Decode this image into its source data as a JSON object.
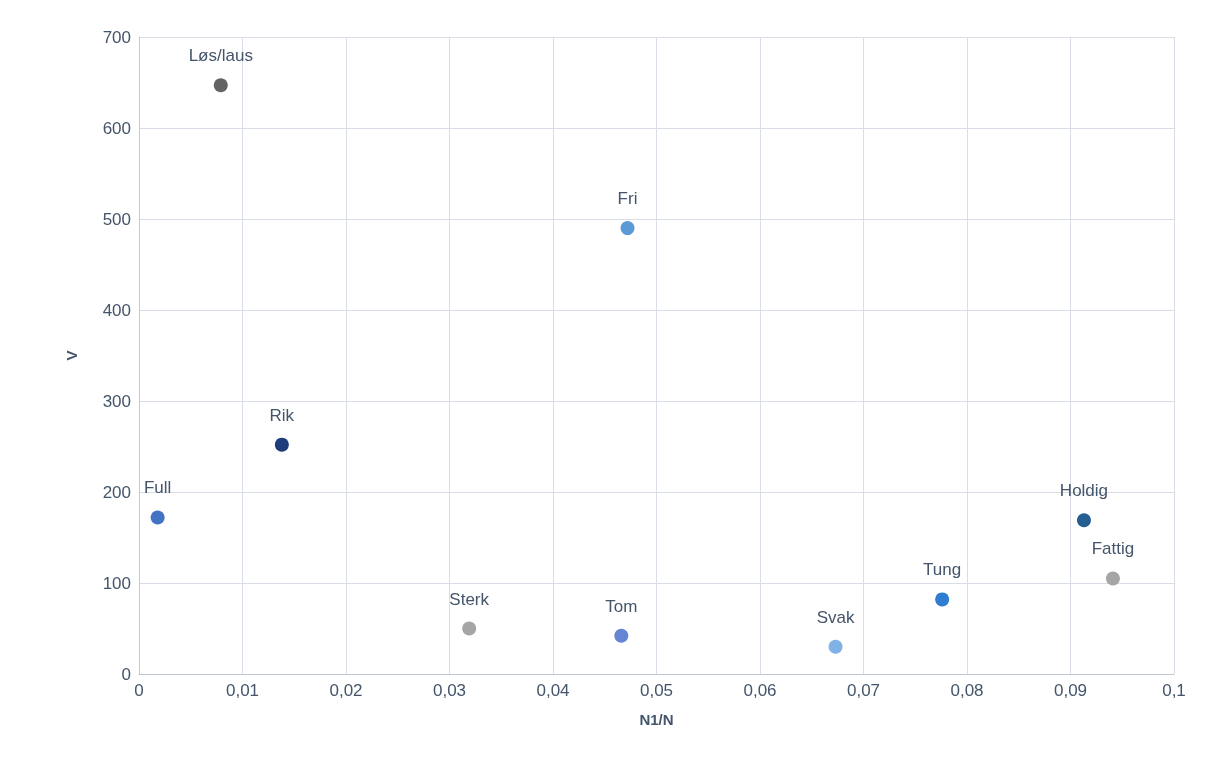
{
  "chart_data": {
    "type": "scatter",
    "xlabel": "N1/N",
    "ylabel": "V",
    "series": [
      {
        "name": "Full",
        "color": "#4472c4",
        "x": [
          0.0018
        ],
        "values": [
          172
        ]
      },
      {
        "name": "Løs/laus",
        "color": "#636363",
        "x": [
          0.0079
        ],
        "values": [
          647
        ]
      },
      {
        "name": "Rik",
        "color": "#1f3d7a",
        "x": [
          0.0138
        ],
        "values": [
          252
        ]
      },
      {
        "name": "Sterk",
        "color": "#a5a5a5",
        "x": [
          0.0319
        ],
        "values": [
          50
        ]
      },
      {
        "name": "Tom",
        "color": "#6684d4",
        "x": [
          0.0466
        ],
        "values": [
          42
        ]
      },
      {
        "name": "Fri",
        "color": "#5b9bd5",
        "x": [
          0.0472
        ],
        "values": [
          490
        ]
      },
      {
        "name": "Svak",
        "color": "#7fb2e5",
        "x": [
          0.0673
        ],
        "values": [
          30
        ]
      },
      {
        "name": "Tung",
        "color": "#2e7dd1",
        "x": [
          0.0776
        ],
        "values": [
          82
        ]
      },
      {
        "name": "Holdig",
        "color": "#255e91",
        "x": [
          0.0913
        ],
        "values": [
          169
        ]
      },
      {
        "name": "Fattig",
        "color": "#a5a5a5",
        "x": [
          0.0941
        ],
        "values": [
          105
        ]
      }
    ],
    "xlim": [
      0,
      0.1
    ],
    "xticks": [
      0,
      {
        "value": 0.01,
        "label": "0,01"
      },
      {
        "value": 0.02,
        "label": "0,02"
      },
      {
        "value": 0.03,
        "label": "0,03"
      },
      {
        "value": 0.04,
        "label": "0,04"
      },
      {
        "value": 0.05,
        "label": "0,05"
      },
      {
        "value": 0.06,
        "label": "0,06"
      },
      {
        "value": 0.07,
        "label": "0,07"
      },
      {
        "value": 0.08,
        "label": "0,08"
      },
      {
        "value": 0.09,
        "label": "0,09"
      },
      {
        "value": 0.1,
        "label": "0,1"
      }
    ],
    "ylim": [
      0,
      700
    ],
    "yticks": [
      0,
      100,
      200,
      300,
      400,
      500,
      600,
      700
    ],
    "grid": true,
    "legend": false,
    "marker": "circle"
  }
}
